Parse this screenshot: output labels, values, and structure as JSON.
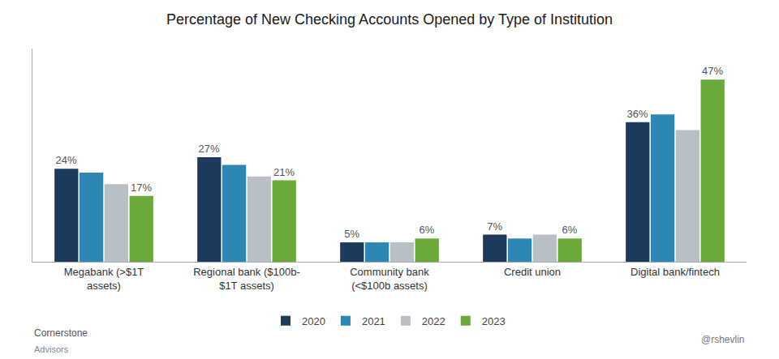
{
  "chart_data": {
    "type": "bar",
    "title": "Percentage of New Checking Accounts Opened by Type of Institution",
    "categories": [
      "Megabank (>$1T\nassets)",
      "Regional bank ($100b-\n$1T assets)",
      "Community bank\n(<$100b assets)",
      "Credit union",
      "Digital bank/fintech"
    ],
    "series": [
      {
        "name": "2020",
        "color": "#1b3a5c",
        "values": [
          24,
          27,
          5,
          7,
          36
        ],
        "data_labels": true,
        "value_labels": [
          "24%",
          "27%",
          "5%",
          "7%",
          "36%"
        ]
      },
      {
        "name": "2021",
        "color": "#2e86b5",
        "values": [
          23,
          25,
          5,
          6,
          38
        ],
        "data_labels": false
      },
      {
        "name": "2022",
        "color": "#b8bfc6",
        "values": [
          20,
          22,
          5,
          7,
          34
        ],
        "data_labels": false
      },
      {
        "name": "2023",
        "color": "#6aaa3a",
        "values": [
          17,
          21,
          6,
          6,
          47
        ],
        "data_labels": true,
        "value_labels": [
          "17%",
          "21%",
          "6%",
          "6%",
          "47%"
        ]
      }
    ],
    "ylim": [
      0,
      55
    ],
    "yticks": [],
    "grid": false,
    "legend": "bottom",
    "tick_labels": "x",
    "annotations": [
      "Cornerstone",
      "Advisors",
      "@rshevlin"
    ]
  }
}
